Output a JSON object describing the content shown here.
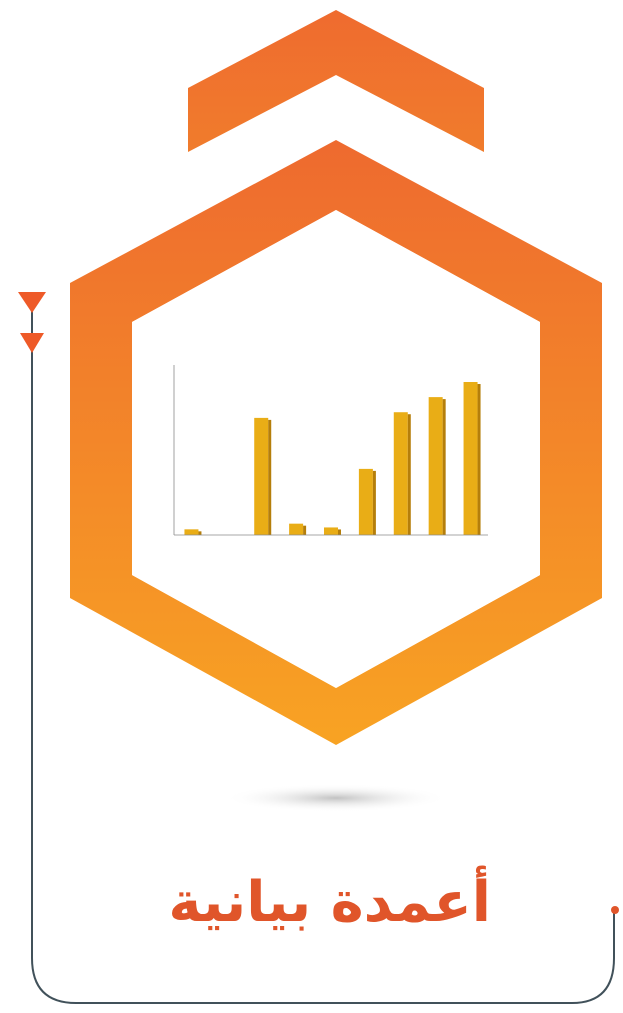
{
  "colors": {
    "orange_top": "#ee6a2f",
    "orange_bottom": "#f8a323",
    "bar_gold": "#e9ad16",
    "bar_dark": "#b57e0a",
    "line": "#41515a",
    "title_text": "#e0552a"
  },
  "graphic": {
    "title": "أعمدة بيانية"
  },
  "chart_data": {
    "type": "bar",
    "title": "",
    "categories": [
      "",
      "",
      "",
      "",
      "",
      "",
      "",
      "",
      ""
    ],
    "values": [
      3,
      0,
      62,
      6,
      4,
      35,
      65,
      73,
      81
    ],
    "ylim": [
      0,
      90
    ],
    "grid": false,
    "legend": "none"
  }
}
